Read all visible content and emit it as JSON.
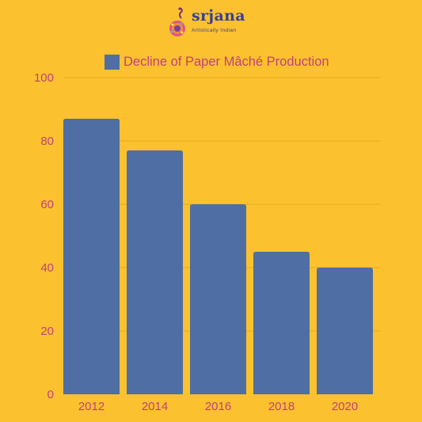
{
  "logo": {
    "name": "srjana",
    "tagline": "Artistically Indian",
    "icon": "peacock-icon"
  },
  "chart_data": {
    "type": "bar",
    "title": "",
    "xlabel": "",
    "ylabel": "",
    "categories": [
      "2012",
      "2014",
      "2016",
      "2018",
      "2020"
    ],
    "series": [
      {
        "name": "Decline of Paper Mâché Production",
        "values": [
          87,
          77,
          60,
          45,
          40
        ]
      }
    ],
    "ylim": [
      0,
      100
    ],
    "yticks": [
      0,
      20,
      40,
      60,
      80,
      100
    ],
    "grid": true,
    "legend": "top-center",
    "colors": {
      "bar": "#4f6ea3",
      "text": "#c0427a",
      "grid": "#e6ad22",
      "background": "#fcc12e"
    }
  }
}
